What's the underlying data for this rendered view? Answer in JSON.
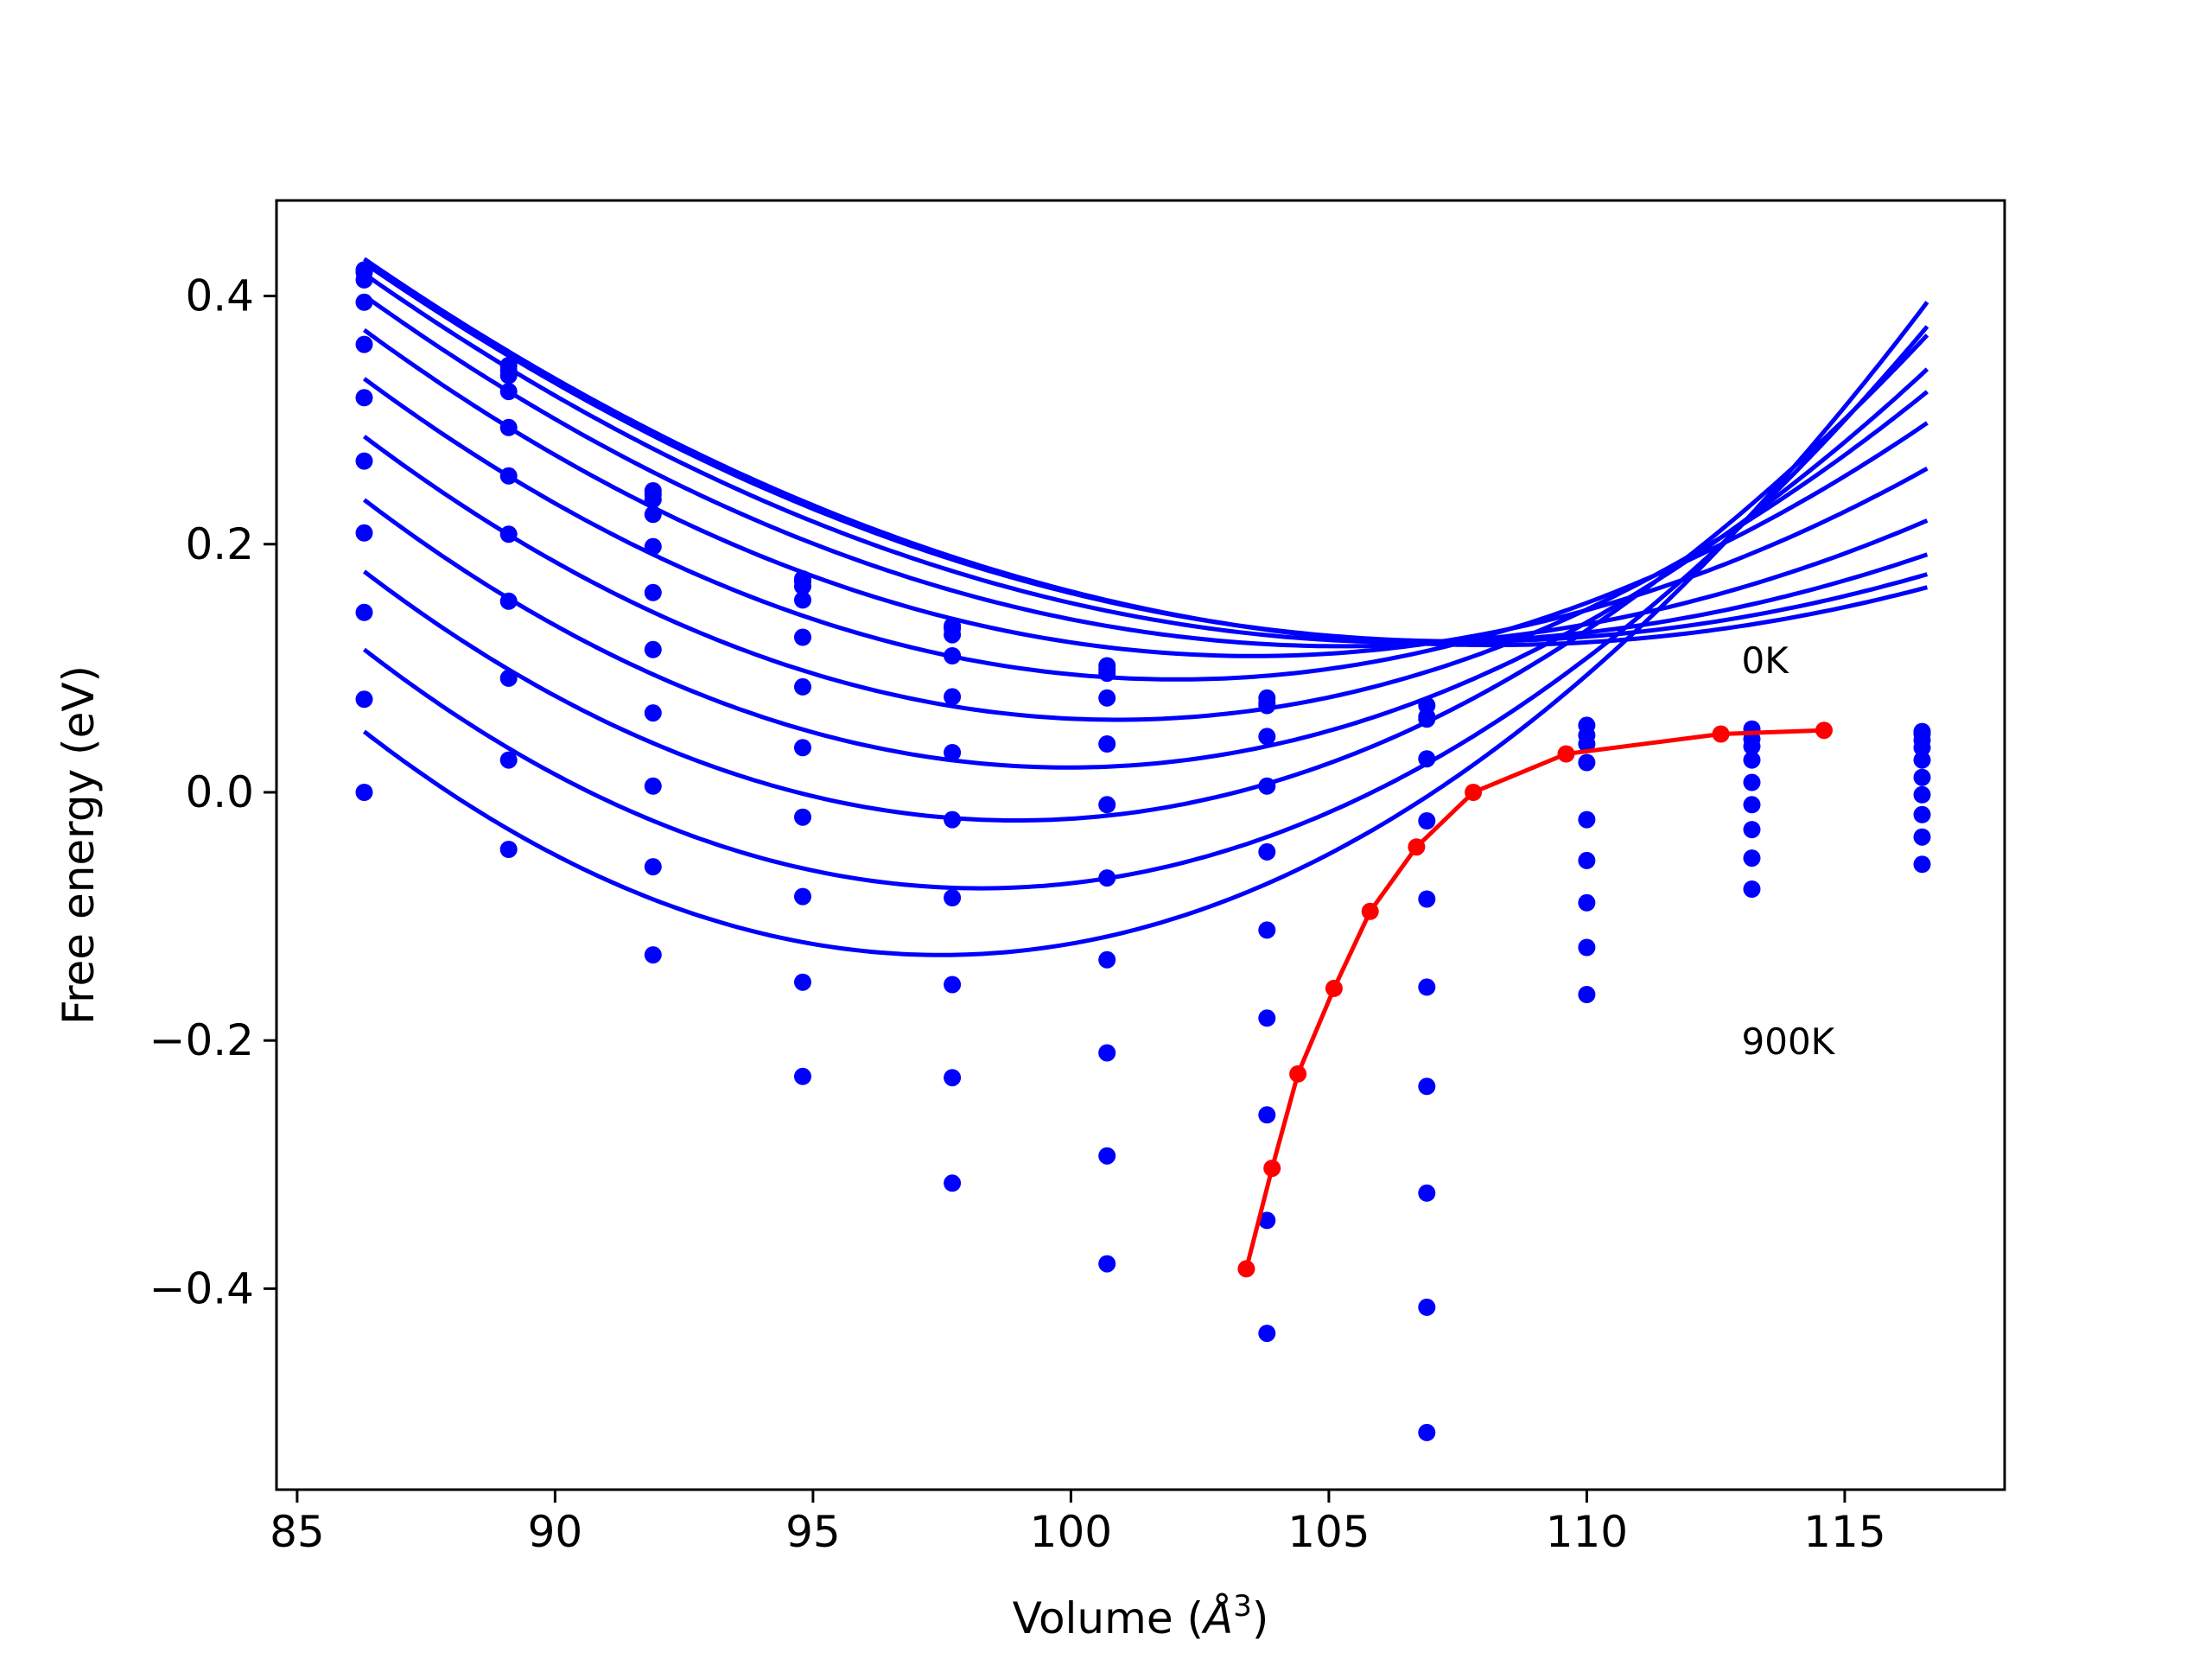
{
  "chart_data": {
    "type": "line",
    "xlabel_text": "Volume (",
    "xlabel_symbol": "Å",
    "xlabel_sup": "3",
    "xlabel_close": ")",
    "ylabel": "Free energy (eV)",
    "xlim": [
      84.6,
      118.1
    ],
    "ylim": [
      -0.562,
      0.477
    ],
    "xticks": [
      85,
      90,
      95,
      100,
      105,
      110,
      115
    ],
    "yticks": [
      -0.4,
      -0.2,
      0.0,
      0.2,
      0.4
    ],
    "ytick_labels": [
      "−0.4",
      "−0.2",
      "0.0",
      "0.2",
      "0.4"
    ],
    "grid": false,
    "annotations": [
      {
        "text": "0K",
        "x": 113.0,
        "y": 0.096
      },
      {
        "text": "900K",
        "x": 113.0,
        "y": -0.211
      }
    ],
    "fit_curve_range": [
      86.3,
      116.6
    ],
    "colors": {
      "fit": "#0000ff",
      "data": "#0000ff",
      "minimum_path": "#ff0000"
    },
    "series": [
      {
        "temperature_index": 0,
        "fit_coefficients": [
          0.4299,
          -0.02849,
          0.000652
        ],
        "points": [
          [
            86.3,
            0.421
          ],
          [
            89.1,
            0.344
          ],
          [
            91.9,
            0.243
          ],
          [
            94.8,
            0.172
          ],
          [
            97.7,
            0.134
          ],
          [
            100.7,
            0.102
          ],
          [
            103.8,
            0.076
          ],
          [
            106.9,
            0.07
          ],
          [
            110.0,
            0.054
          ],
          [
            113.2,
            0.051
          ],
          [
            116.5,
            0.049
          ]
        ]
      },
      {
        "temperature_index": 1,
        "fit_coefficients": [
          0.4266,
          -0.02861,
          0.000671
        ],
        "points": [
          [
            86.3,
            0.419
          ],
          [
            89.1,
            0.34
          ],
          [
            91.9,
            0.24
          ],
          [
            94.8,
            0.17
          ],
          [
            97.7,
            0.132
          ],
          [
            100.7,
            0.099
          ],
          [
            103.8,
            0.072
          ],
          [
            106.9,
            0.061
          ],
          [
            110.0,
            0.046
          ],
          [
            113.2,
            0.043
          ],
          [
            116.5,
            0.048
          ]
        ]
      },
      {
        "temperature_index": 2,
        "fit_coefficients": [
          0.4179,
          -0.02919,
          0.000717
        ],
        "points": [
          [
            86.3,
            0.413
          ],
          [
            89.1,
            0.336
          ],
          [
            91.9,
            0.236
          ],
          [
            94.8,
            0.166
          ],
          [
            97.7,
            0.127
          ],
          [
            100.7,
            0.096
          ],
          [
            103.8,
            0.07
          ],
          [
            106.9,
            0.059
          ],
          [
            110.0,
            0.039
          ],
          [
            113.2,
            0.037
          ],
          [
            116.5,
            0.047
          ]
        ]
      },
      {
        "temperature_index": 3,
        "fit_coefficients": [
          0.4004,
          -0.02983,
          0.000787
        ],
        "points": [
          [
            86.3,
            0.395
          ],
          [
            89.1,
            0.323
          ],
          [
            91.9,
            0.224
          ],
          [
            94.8,
            0.155
          ],
          [
            97.7,
            0.11
          ],
          [
            100.7,
            0.076
          ],
          [
            103.8,
            0.045
          ],
          [
            106.9,
            0.027
          ],
          [
            110.0,
            0.024
          ],
          [
            113.2,
            0.026
          ],
          [
            116.5,
            0.042
          ]
        ]
      },
      {
        "temperature_index": 4,
        "fit_coefficients": [
          0.3726,
          -0.0305,
          0.000885
        ],
        "points": [
          [
            86.3,
            0.361
          ],
          [
            89.1,
            0.294
          ],
          [
            91.9,
            0.198
          ],
          [
            94.8,
            0.125
          ],
          [
            97.7,
            0.077
          ],
          [
            100.7,
            0.039
          ],
          [
            103.8,
            0.005
          ],
          [
            106.9,
            -0.023
          ],
          [
            110.0,
            -0.022
          ],
          [
            113.2,
            0.008
          ],
          [
            116.5,
            0.036
          ]
        ]
      },
      {
        "temperature_index": 5,
        "fit_coefficients": [
          0.3334,
          -0.03078,
          0.000977
        ],
        "points": [
          [
            86.3,
            0.318
          ],
          [
            89.1,
            0.255
          ],
          [
            91.9,
            0.161
          ],
          [
            94.8,
            0.085
          ],
          [
            97.7,
            0.032
          ],
          [
            100.7,
            -0.01
          ],
          [
            103.8,
            -0.048
          ],
          [
            106.9,
            -0.086
          ],
          [
            110.0,
            -0.055
          ],
          [
            113.2,
            -0.01
          ],
          [
            116.5,
            0.026
          ]
        ]
      },
      {
        "temperature_index": 6,
        "fit_coefficients": [
          0.2868,
          -0.03129,
          0.001072
        ],
        "points": [
          [
            86.3,
            0.267
          ],
          [
            89.1,
            0.208
          ],
          [
            91.9,
            0.115
          ],
          [
            94.8,
            0.036
          ],
          [
            97.7,
            -0.022
          ],
          [
            100.7,
            -0.069
          ],
          [
            103.8,
            -0.111
          ],
          [
            106.9,
            -0.157
          ],
          [
            110.0,
            -0.089
          ],
          [
            113.2,
            -0.03
          ],
          [
            116.5,
            0.012
          ]
        ]
      },
      {
        "temperature_index": 7,
        "fit_coefficients": [
          0.2357,
          -0.03161,
          0.001158
        ],
        "points": [
          [
            86.3,
            0.209
          ],
          [
            89.1,
            0.154
          ],
          [
            91.9,
            0.064
          ],
          [
            94.8,
            -0.02
          ],
          [
            97.7,
            -0.085
          ],
          [
            100.7,
            -0.135
          ],
          [
            103.8,
            -0.182
          ],
          [
            106.9,
            -0.237
          ],
          [
            110.0,
            -0.163
          ],
          [
            113.2,
            -0.053
          ],
          [
            116.5,
            -0.002
          ]
        ]
      },
      {
        "temperature_index": 8,
        "fit_coefficients": [
          0.178,
          -0.03174,
          0.001255
        ],
        "points": [
          [
            86.3,
            0.145
          ],
          [
            89.1,
            0.092
          ],
          [
            91.9,
            0.005
          ],
          [
            94.8,
            -0.084
          ],
          [
            97.7,
            -0.155
          ],
          [
            100.7,
            -0.21
          ],
          [
            103.8,
            -0.26
          ],
          [
            106.9,
            -0.323
          ],
          [
            110.0,
            -0.125
          ],
          [
            113.2,
            -0.078
          ],
          [
            116.5,
            -0.018
          ]
        ]
      },
      {
        "temperature_index": 9,
        "fit_coefficients": [
          0.1151,
          -0.03219,
          0.001346
        ],
        "points": [
          [
            86.3,
            0.075
          ],
          [
            89.1,
            0.026
          ],
          [
            91.9,
            -0.06
          ],
          [
            94.8,
            -0.153
          ],
          [
            97.7,
            -0.23
          ],
          [
            100.7,
            -0.293
          ],
          [
            103.8,
            -0.345
          ],
          [
            106.9,
            -0.415
          ],
          [
            116.5,
            -0.036
          ]
        ]
      },
      {
        "temperature_index": 10,
        "fit_coefficients": [
          0.049,
          -0.03221,
          0.00144
        ],
        "points": [
          [
            86.3,
            0.0
          ],
          [
            89.1,
            -0.046
          ],
          [
            91.9,
            -0.131
          ],
          [
            94.8,
            -0.229
          ],
          [
            97.7,
            -0.315
          ],
          [
            100.7,
            -0.38
          ],
          [
            103.8,
            -0.436
          ],
          [
            106.9,
            -0.516
          ],
          [
            116.5,
            -0.058
          ]
        ]
      }
    ],
    "minimum_path": {
      "x": [
        114.6,
        112.6,
        109.6,
        107.8,
        106.7,
        105.8,
        105.1,
        104.4,
        103.9,
        103.4
      ],
      "y": [
        0.05,
        0.047,
        0.031,
        0.0,
        -0.044,
        -0.096,
        -0.158,
        -0.227,
        -0.303,
        -0.384
      ]
    }
  }
}
